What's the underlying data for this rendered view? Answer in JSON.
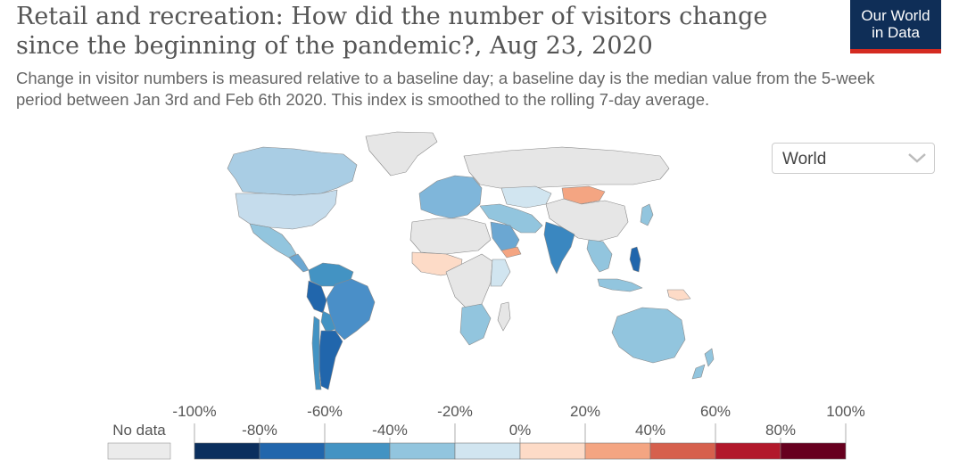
{
  "header": {
    "title": "Retail and recreation: How did the number of visitors change since the beginning of the pandemic?, Aug 23, 2020",
    "subtitle": "Change in visitor numbers is measured relative to a baseline day; a baseline day is the median value from the 5-week period between Jan 3rd and Feb 6th 2020. This index is smoothed to the rolling 7-day average."
  },
  "logo": {
    "line1": "Our World",
    "line2": "in Data",
    "bg_color": "#0f2e57",
    "stripe_color": "#d42b21"
  },
  "region_select": {
    "selected": "World",
    "icon": "chevron-down-icon"
  },
  "legend": {
    "no_data_label": "No data",
    "no_data_color": "#ebebeb",
    "ticks_upper": [
      "-100%",
      "-60%",
      "-20%",
      "20%",
      "60%",
      "100%"
    ],
    "ticks_lower": [
      "-80%",
      "-40%",
      "0%",
      "40%",
      "80%"
    ],
    "colors": [
      "#0b2f5e",
      "#2166ac",
      "#4393c3",
      "#92c5de",
      "#d1e5f0",
      "#fddbc7",
      "#f4a582",
      "#d6604d",
      "#b2182b",
      "#67001f"
    ]
  },
  "map": {
    "no_data_color": "#e6e6e6",
    "regions": [
      {
        "name": "North America",
        "color": "#c5dcec"
      },
      {
        "name": "Canada",
        "color": "#a9cde4"
      },
      {
        "name": "Greenland",
        "color": "#e6e6e6"
      },
      {
        "name": "Mexico",
        "color": "#92c5de"
      },
      {
        "name": "Central America",
        "color": "#6ba7d2"
      },
      {
        "name": "South America North",
        "color": "#4393c3"
      },
      {
        "name": "Peru",
        "color": "#2166ac"
      },
      {
        "name": "Brazil",
        "color": "#4a8fc8"
      },
      {
        "name": "Bolivia",
        "color": "#4393c3"
      },
      {
        "name": "Argentina",
        "color": "#2166ac"
      },
      {
        "name": "Chile",
        "color": "#4393c3"
      },
      {
        "name": "Western Europe",
        "color": "#7fb6da"
      },
      {
        "name": "Russia",
        "color": "#e6e6e6"
      },
      {
        "name": "Kazakhstan",
        "color": "#d1e5f0"
      },
      {
        "name": "Mongolia",
        "color": "#f4a582"
      },
      {
        "name": "China",
        "color": "#e6e6e6"
      },
      {
        "name": "Middle East",
        "color": "#92c5de"
      },
      {
        "name": "Saudi Arabia",
        "color": "#6ba7d2"
      },
      {
        "name": "Yemen",
        "color": "#f4a582"
      },
      {
        "name": "India",
        "color": "#3a87c0"
      },
      {
        "name": "Southeast Asia",
        "color": "#92c5de"
      },
      {
        "name": "Philippines",
        "color": "#2166ac"
      },
      {
        "name": "Papua New Guinea",
        "color": "#fddbc7"
      },
      {
        "name": "North Africa",
        "color": "#e6e6e6"
      },
      {
        "name": "West Africa",
        "color": "#fddbc7"
      },
      {
        "name": "Central Africa",
        "color": "#e6e6e6"
      },
      {
        "name": "East Africa",
        "color": "#d1e5f0"
      },
      {
        "name": "Southern Africa",
        "color": "#92c5de"
      },
      {
        "name": "Madagascar",
        "color": "#e6e6e6"
      },
      {
        "name": "Australia",
        "color": "#92c5de"
      },
      {
        "name": "New Zealand",
        "color": "#92c5de"
      },
      {
        "name": "Japan",
        "color": "#92c5de"
      }
    ]
  }
}
